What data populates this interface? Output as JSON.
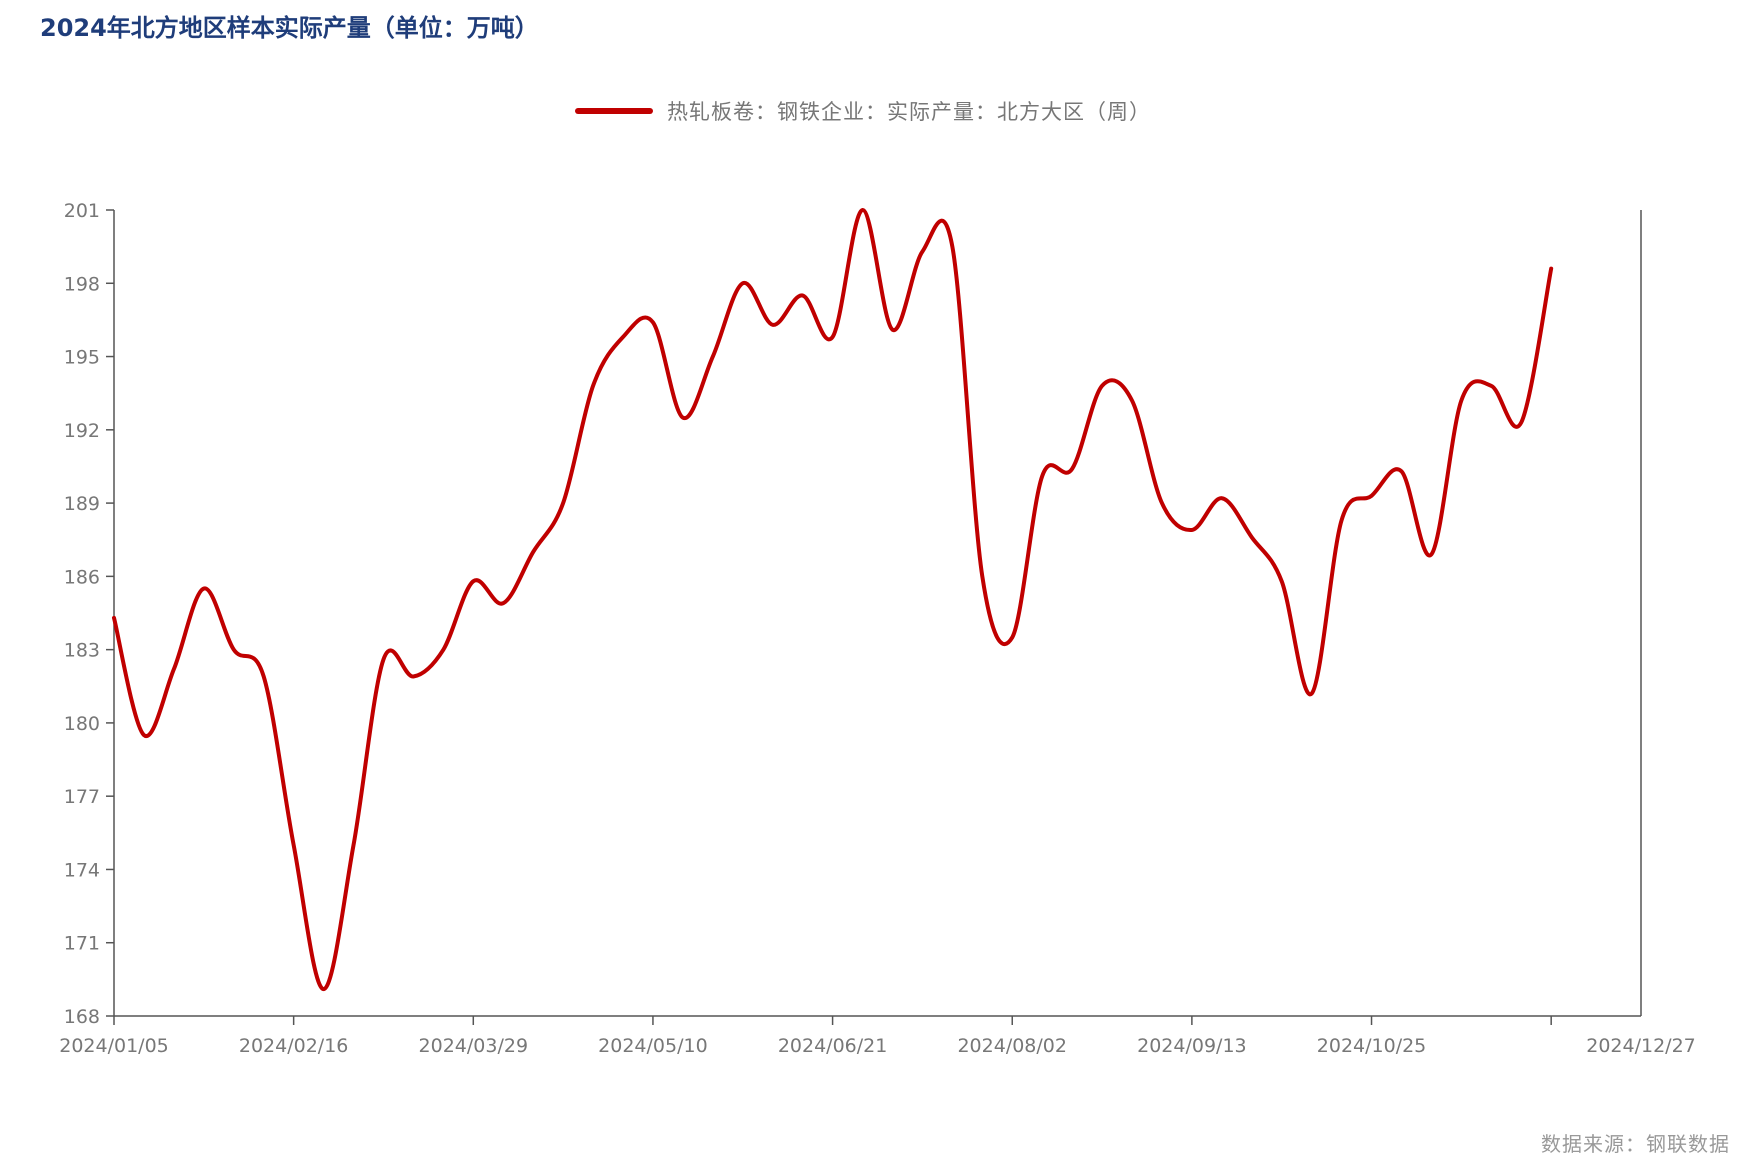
{
  "title": "2024年北方地区样本实际产量（单位：万吨）",
  "source": "数据来源：钢联数据",
  "colors": {
    "title": "#1f3d7a",
    "series": "#c00000",
    "axis": "#555555",
    "tick_text": "#777777"
  },
  "chart_data": {
    "type": "line",
    "title": "2024年北方地区样本实际产量（单位：万吨）",
    "xlabel": "",
    "ylabel": "",
    "ylim": [
      168,
      201
    ],
    "yticks": [
      168,
      171,
      174,
      177,
      180,
      183,
      186,
      189,
      192,
      195,
      198,
      201
    ],
    "xtick_labels": [
      "2024/01/05",
      "2024/02/16",
      "2024/03/29",
      "2024/05/10",
      "2024/06/21",
      "2024/08/02",
      "2024/09/13",
      "2024/10/25",
      "2024/12/27"
    ],
    "grid": false,
    "legend_position": "top-center",
    "series": [
      {
        "name": "热轧板卷：钢铁企业：实际产量：北方大区（周）",
        "x": [
          "2024/01/05",
          "2024/01/12",
          "2024/01/19",
          "2024/01/26",
          "2024/02/02",
          "2024/02/09",
          "2024/02/16",
          "2024/02/23",
          "2024/03/01",
          "2024/03/08",
          "2024/03/15",
          "2024/03/22",
          "2024/03/29",
          "2024/04/05",
          "2024/04/12",
          "2024/04/19",
          "2024/04/26",
          "2024/05/03",
          "2024/05/10",
          "2024/05/17",
          "2024/05/24",
          "2024/05/31",
          "2024/06/07",
          "2024/06/14",
          "2024/06/21",
          "2024/06/28",
          "2024/07/05",
          "2024/07/12",
          "2024/07/19",
          "2024/07/26",
          "2024/08/02",
          "2024/08/09",
          "2024/08/16",
          "2024/08/23",
          "2024/08/30",
          "2024/09/06",
          "2024/09/13",
          "2024/09/20",
          "2024/09/27",
          "2024/10/04",
          "2024/10/11",
          "2024/10/18",
          "2024/10/25",
          "2024/11/01",
          "2024/11/08",
          "2024/11/15",
          "2024/11/22",
          "2024/11/29",
          "2024/12/06",
          "2024/12/13",
          "2024/12/20",
          "2024/12/27"
        ],
        "values": [
          184.3,
          179.5,
          182.2,
          185.5,
          183.0,
          181.9,
          175.0,
          169.1,
          175.0,
          182.6,
          181.9,
          183.0,
          185.8,
          184.9,
          187.0,
          189.0,
          193.8,
          195.8,
          196.4,
          192.5,
          195.0,
          198.0,
          196.3,
          197.5,
          195.8,
          201.0,
          196.1,
          199.3,
          199.5,
          186.0,
          183.5,
          190.1,
          190.4,
          193.8,
          193.2,
          189.0,
          187.9,
          189.2,
          187.6,
          185.8,
          181.2,
          188.3,
          189.3,
          190.3,
          186.9,
          193.2,
          193.8,
          192.3,
          198.6,
          null,
          null,
          null
        ]
      }
    ]
  }
}
